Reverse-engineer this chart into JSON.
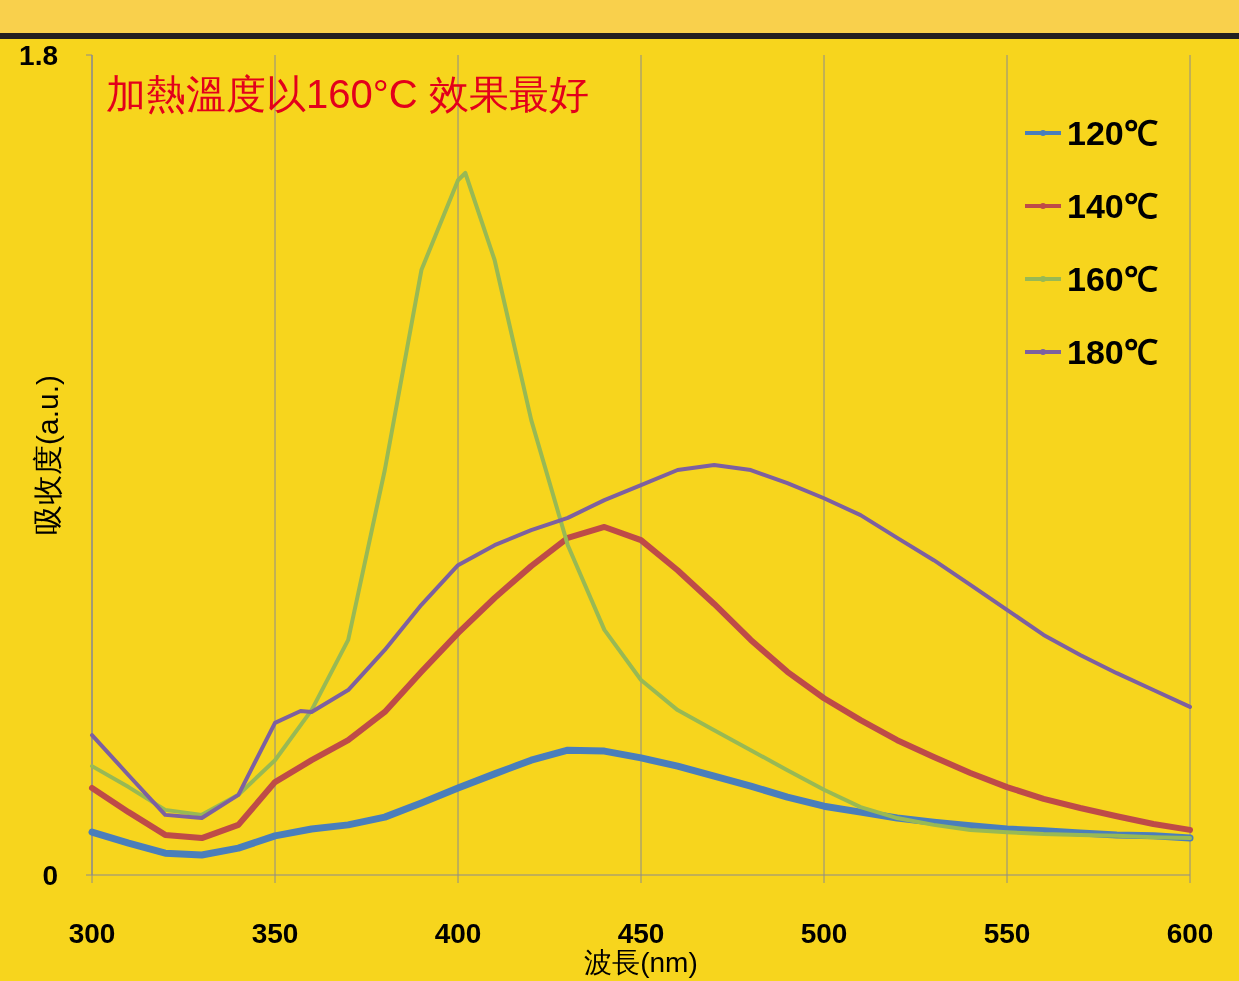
{
  "chart_data": {
    "type": "line",
    "xlabel": "波長(nm)",
    "ylabel": "吸收度(a.u.)",
    "annotations": [
      "加熱溫度以160°C 效果最好"
    ],
    "xlim": [
      300,
      600
    ],
    "ylim": [
      0,
      1.8
    ],
    "xticks": [
      300,
      350,
      400,
      450,
      500,
      550,
      600
    ],
    "yticks": [
      0,
      1.8
    ],
    "grid": "x",
    "legend": "top right",
    "series": [
      {
        "name": "120℃",
        "color": "#4a7ebb",
        "x": [
          300,
          310,
          320,
          330,
          340,
          350,
          360,
          370,
          380,
          390,
          400,
          410,
          420,
          430,
          440,
          450,
          460,
          470,
          480,
          490,
          500,
          510,
          520,
          530,
          540,
          550,
          560,
          570,
          580,
          590,
          600
        ],
        "values": [
          0.094,
          0.07,
          0.048,
          0.044,
          0.059,
          0.086,
          0.101,
          0.11,
          0.127,
          0.158,
          0.191,
          0.222,
          0.252,
          0.274,
          0.272,
          0.257,
          0.239,
          0.217,
          0.195,
          0.171,
          0.151,
          0.138,
          0.125,
          0.116,
          0.108,
          0.101,
          0.097,
          0.092,
          0.088,
          0.086,
          0.081
        ]
      },
      {
        "name": "140℃",
        "color": "#be4b48",
        "x": [
          300,
          310,
          320,
          330,
          340,
          350,
          360,
          370,
          380,
          390,
          400,
          410,
          420,
          430,
          440,
          450,
          460,
          470,
          480,
          490,
          500,
          510,
          520,
          530,
          540,
          550,
          560,
          570,
          580,
          590,
          600
        ],
        "values": [
          0.191,
          0.138,
          0.088,
          0.081,
          0.11,
          0.204,
          0.252,
          0.296,
          0.358,
          0.446,
          0.531,
          0.608,
          0.678,
          0.74,
          0.764,
          0.735,
          0.669,
          0.595,
          0.516,
          0.446,
          0.388,
          0.34,
          0.296,
          0.259,
          0.224,
          0.193,
          0.167,
          0.147,
          0.129,
          0.112,
          0.099
        ]
      },
      {
        "name": "160℃",
        "color": "#98b954",
        "x": [
          300,
          310,
          320,
          330,
          340,
          350,
          360,
          370,
          380,
          390,
          400,
          402,
          410,
          420,
          430,
          440,
          450,
          460,
          470,
          480,
          490,
          500,
          510,
          520,
          530,
          540,
          550,
          560,
          570,
          580,
          590,
          600
        ],
        "values": [
          0.239,
          0.193,
          0.143,
          0.132,
          0.176,
          0.252,
          0.362,
          0.516,
          0.889,
          1.328,
          1.525,
          1.541,
          1.35,
          0.999,
          0.724,
          0.538,
          0.428,
          0.362,
          0.318,
          0.274,
          0.23,
          0.187,
          0.149,
          0.125,
          0.11,
          0.099,
          0.094,
          0.09,
          0.088,
          0.086,
          0.083,
          0.081
        ]
      },
      {
        "name": "180℃",
        "color": "#7d60a0",
        "x": [
          300,
          310,
          320,
          330,
          340,
          350,
          357,
          360,
          370,
          380,
          390,
          400,
          410,
          420,
          430,
          440,
          450,
          460,
          470,
          480,
          490,
          500,
          510,
          520,
          530,
          540,
          550,
          560,
          570,
          580,
          590,
          600
        ],
        "values": [
          0.307,
          0.219,
          0.132,
          0.125,
          0.176,
          0.334,
          0.36,
          0.358,
          0.406,
          0.494,
          0.593,
          0.68,
          0.724,
          0.757,
          0.784,
          0.823,
          0.856,
          0.889,
          0.9,
          0.889,
          0.86,
          0.827,
          0.79,
          0.74,
          0.691,
          0.637,
          0.582,
          0.527,
          0.483,
          0.443,
          0.406,
          0.369
        ]
      }
    ]
  }
}
